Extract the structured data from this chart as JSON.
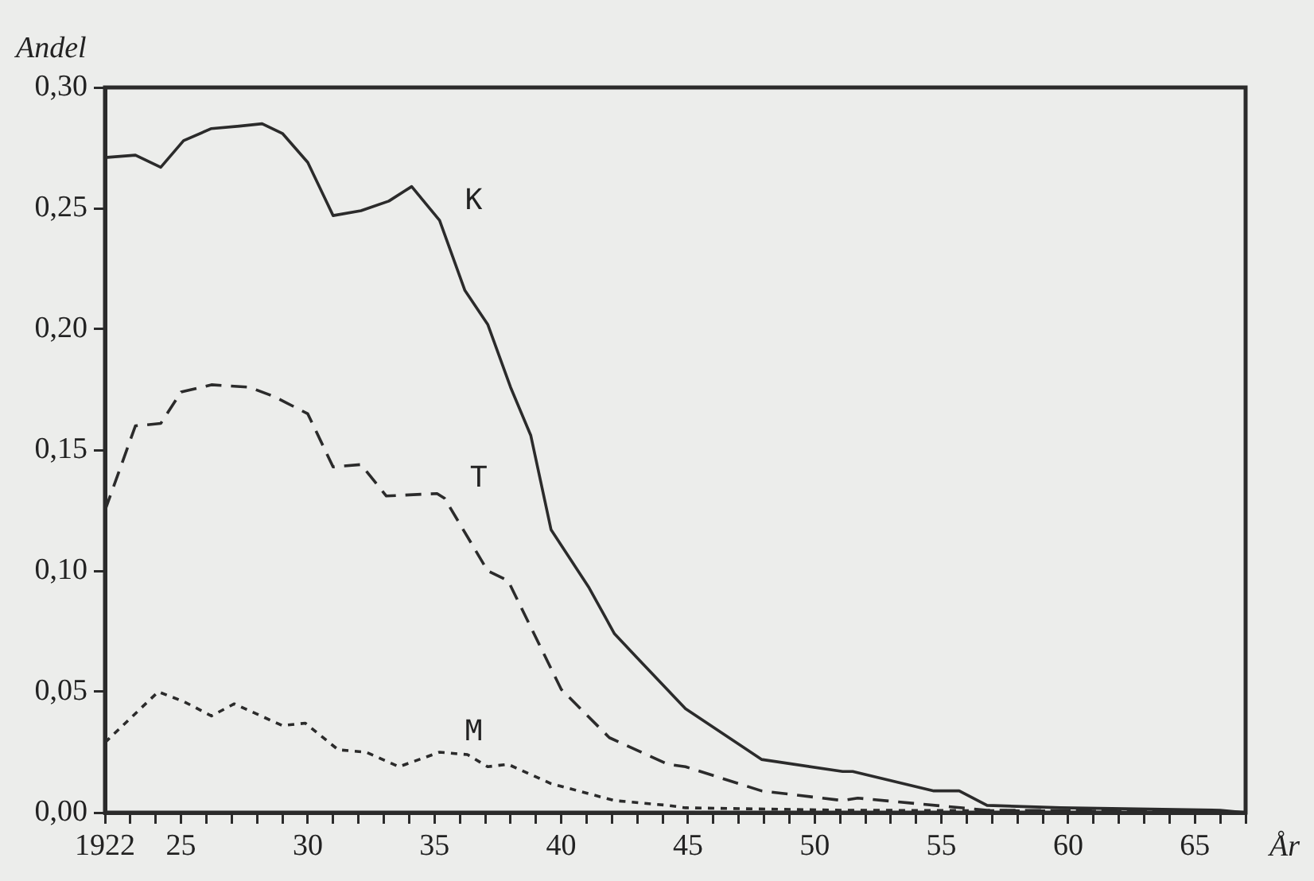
{
  "chart_data": {
    "type": "line",
    "xlabel": "År",
    "ylabel": "Andel",
    "xlim": [
      1922,
      1967
    ],
    "ylim": [
      0,
      0.3
    ],
    "xticks": [
      {
        "value": 1922,
        "label": "1922"
      },
      {
        "value": 1923,
        "label": null
      },
      {
        "value": 1924,
        "label": null
      },
      {
        "value": 1925,
        "label": "25"
      },
      {
        "value": 1926,
        "label": null
      },
      {
        "value": 1927,
        "label": null
      },
      {
        "value": 1928,
        "label": null
      },
      {
        "value": 1929,
        "label": null
      },
      {
        "value": 1930,
        "label": "30"
      },
      {
        "value": 1931,
        "label": null
      },
      {
        "value": 1932,
        "label": null
      },
      {
        "value": 1933,
        "label": null
      },
      {
        "value": 1934,
        "label": null
      },
      {
        "value": 1935,
        "label": "35"
      },
      {
        "value": 1936,
        "label": null
      },
      {
        "value": 1937,
        "label": null
      },
      {
        "value": 1938,
        "label": null
      },
      {
        "value": 1939,
        "label": null
      },
      {
        "value": 1940,
        "label": "40"
      },
      {
        "value": 1941,
        "label": null
      },
      {
        "value": 1942,
        "label": null
      },
      {
        "value": 1943,
        "label": null
      },
      {
        "value": 1944,
        "label": null
      },
      {
        "value": 1945,
        "label": "45"
      },
      {
        "value": 1946,
        "label": null
      },
      {
        "value": 1947,
        "label": null
      },
      {
        "value": 1948,
        "label": null
      },
      {
        "value": 1949,
        "label": null
      },
      {
        "value": 1950,
        "label": "50"
      },
      {
        "value": 1951,
        "label": null
      },
      {
        "value": 1952,
        "label": null
      },
      {
        "value": 1953,
        "label": null
      },
      {
        "value": 1954,
        "label": null
      },
      {
        "value": 1955,
        "label": "55"
      },
      {
        "value": 1956,
        "label": null
      },
      {
        "value": 1957,
        "label": null
      },
      {
        "value": 1958,
        "label": null
      },
      {
        "value": 1959,
        "label": null
      },
      {
        "value": 1960,
        "label": "60"
      },
      {
        "value": 1961,
        "label": null
      },
      {
        "value": 1962,
        "label": null
      },
      {
        "value": 1963,
        "label": null
      },
      {
        "value": 1964,
        "label": null
      },
      {
        "value": 1965,
        "label": "65"
      },
      {
        "value": 1966,
        "label": null
      },
      {
        "value": 1967,
        "label": null
      }
    ],
    "yticks": [
      {
        "value": 0,
        "label": "0,00"
      },
      {
        "value": 0.05,
        "label": "0,05"
      },
      {
        "value": 0.1,
        "label": "0,10"
      },
      {
        "value": 0.15,
        "label": "0,15"
      },
      {
        "value": 0.2,
        "label": "0,20"
      },
      {
        "value": 0.25,
        "label": "0,25"
      },
      {
        "value": 0.3,
        "label": "0,30"
      }
    ],
    "grid": false,
    "legend": false,
    "marker": "none",
    "series": [
      {
        "name": "K",
        "color": "#2b2b2b",
        "line_style": "solid",
        "x": [
          1922,
          1923.2,
          1924.2,
          1925.1,
          1926.2,
          1927.3,
          1928.2,
          1929,
          1930,
          1931,
          1932.1,
          1933.2,
          1934.1,
          1935.2,
          1936.2,
          1937.1,
          1938,
          1938.8,
          1939.6,
          1941.1,
          1942.1,
          1943,
          1944.9,
          1947.9,
          1951.1,
          1951.5,
          1954.7,
          1955.7,
          1956.8,
          1959.7,
          1966,
          1967
        ],
        "values": [
          0.271,
          0.272,
          0.267,
          0.278,
          0.283,
          0.284,
          0.285,
          0.281,
          0.269,
          0.247,
          0.249,
          0.253,
          0.259,
          0.245,
          0.216,
          0.202,
          0.176,
          0.156,
          0.117,
          0.093,
          0.074,
          0.064,
          0.043,
          0.022,
          0.017,
          0.017,
          0.009,
          0.009,
          0.003,
          0.002,
          0.001,
          0
        ]
      },
      {
        "name": "T",
        "color": "#2b2b2b",
        "line_style": "dashed",
        "x": [
          1922,
          1923.2,
          1924.2,
          1925,
          1926.2,
          1927.7,
          1928.7,
          1930,
          1931,
          1932.1,
          1933.1,
          1935.1,
          1935.4,
          1937.1,
          1937.9,
          1940,
          1941.9,
          1944.2,
          1944.9,
          1947.9,
          1951.1,
          1951.7,
          1956.8,
          1966,
          1967
        ],
        "values": [
          0.125,
          0.16,
          0.161,
          0.174,
          0.177,
          0.176,
          0.172,
          0.165,
          0.143,
          0.144,
          0.131,
          0.132,
          0.13,
          0.1,
          0.096,
          0.051,
          0.031,
          0.02,
          0.019,
          0.009,
          0.005,
          0.006,
          0.001,
          0.0005,
          0
        ]
      },
      {
        "name": "M",
        "color": "#2b2b2b",
        "line_style": "dotted",
        "x": [
          1922,
          1924.1,
          1925.1,
          1926.2,
          1927.1,
          1929,
          1929.9,
          1931.2,
          1932.3,
          1933.6,
          1935.2,
          1936.3,
          1937.1,
          1937.9,
          1939.6,
          1942.1,
          1944.2,
          1944.9,
          1951,
          1966,
          1967
        ],
        "values": [
          0.029,
          0.05,
          0.046,
          0.04,
          0.045,
          0.036,
          0.037,
          0.026,
          0.025,
          0.019,
          0.025,
          0.024,
          0.019,
          0.02,
          0.012,
          0.005,
          0.003,
          0.002,
          0.001,
          0.0005,
          0
        ]
      }
    ]
  }
}
